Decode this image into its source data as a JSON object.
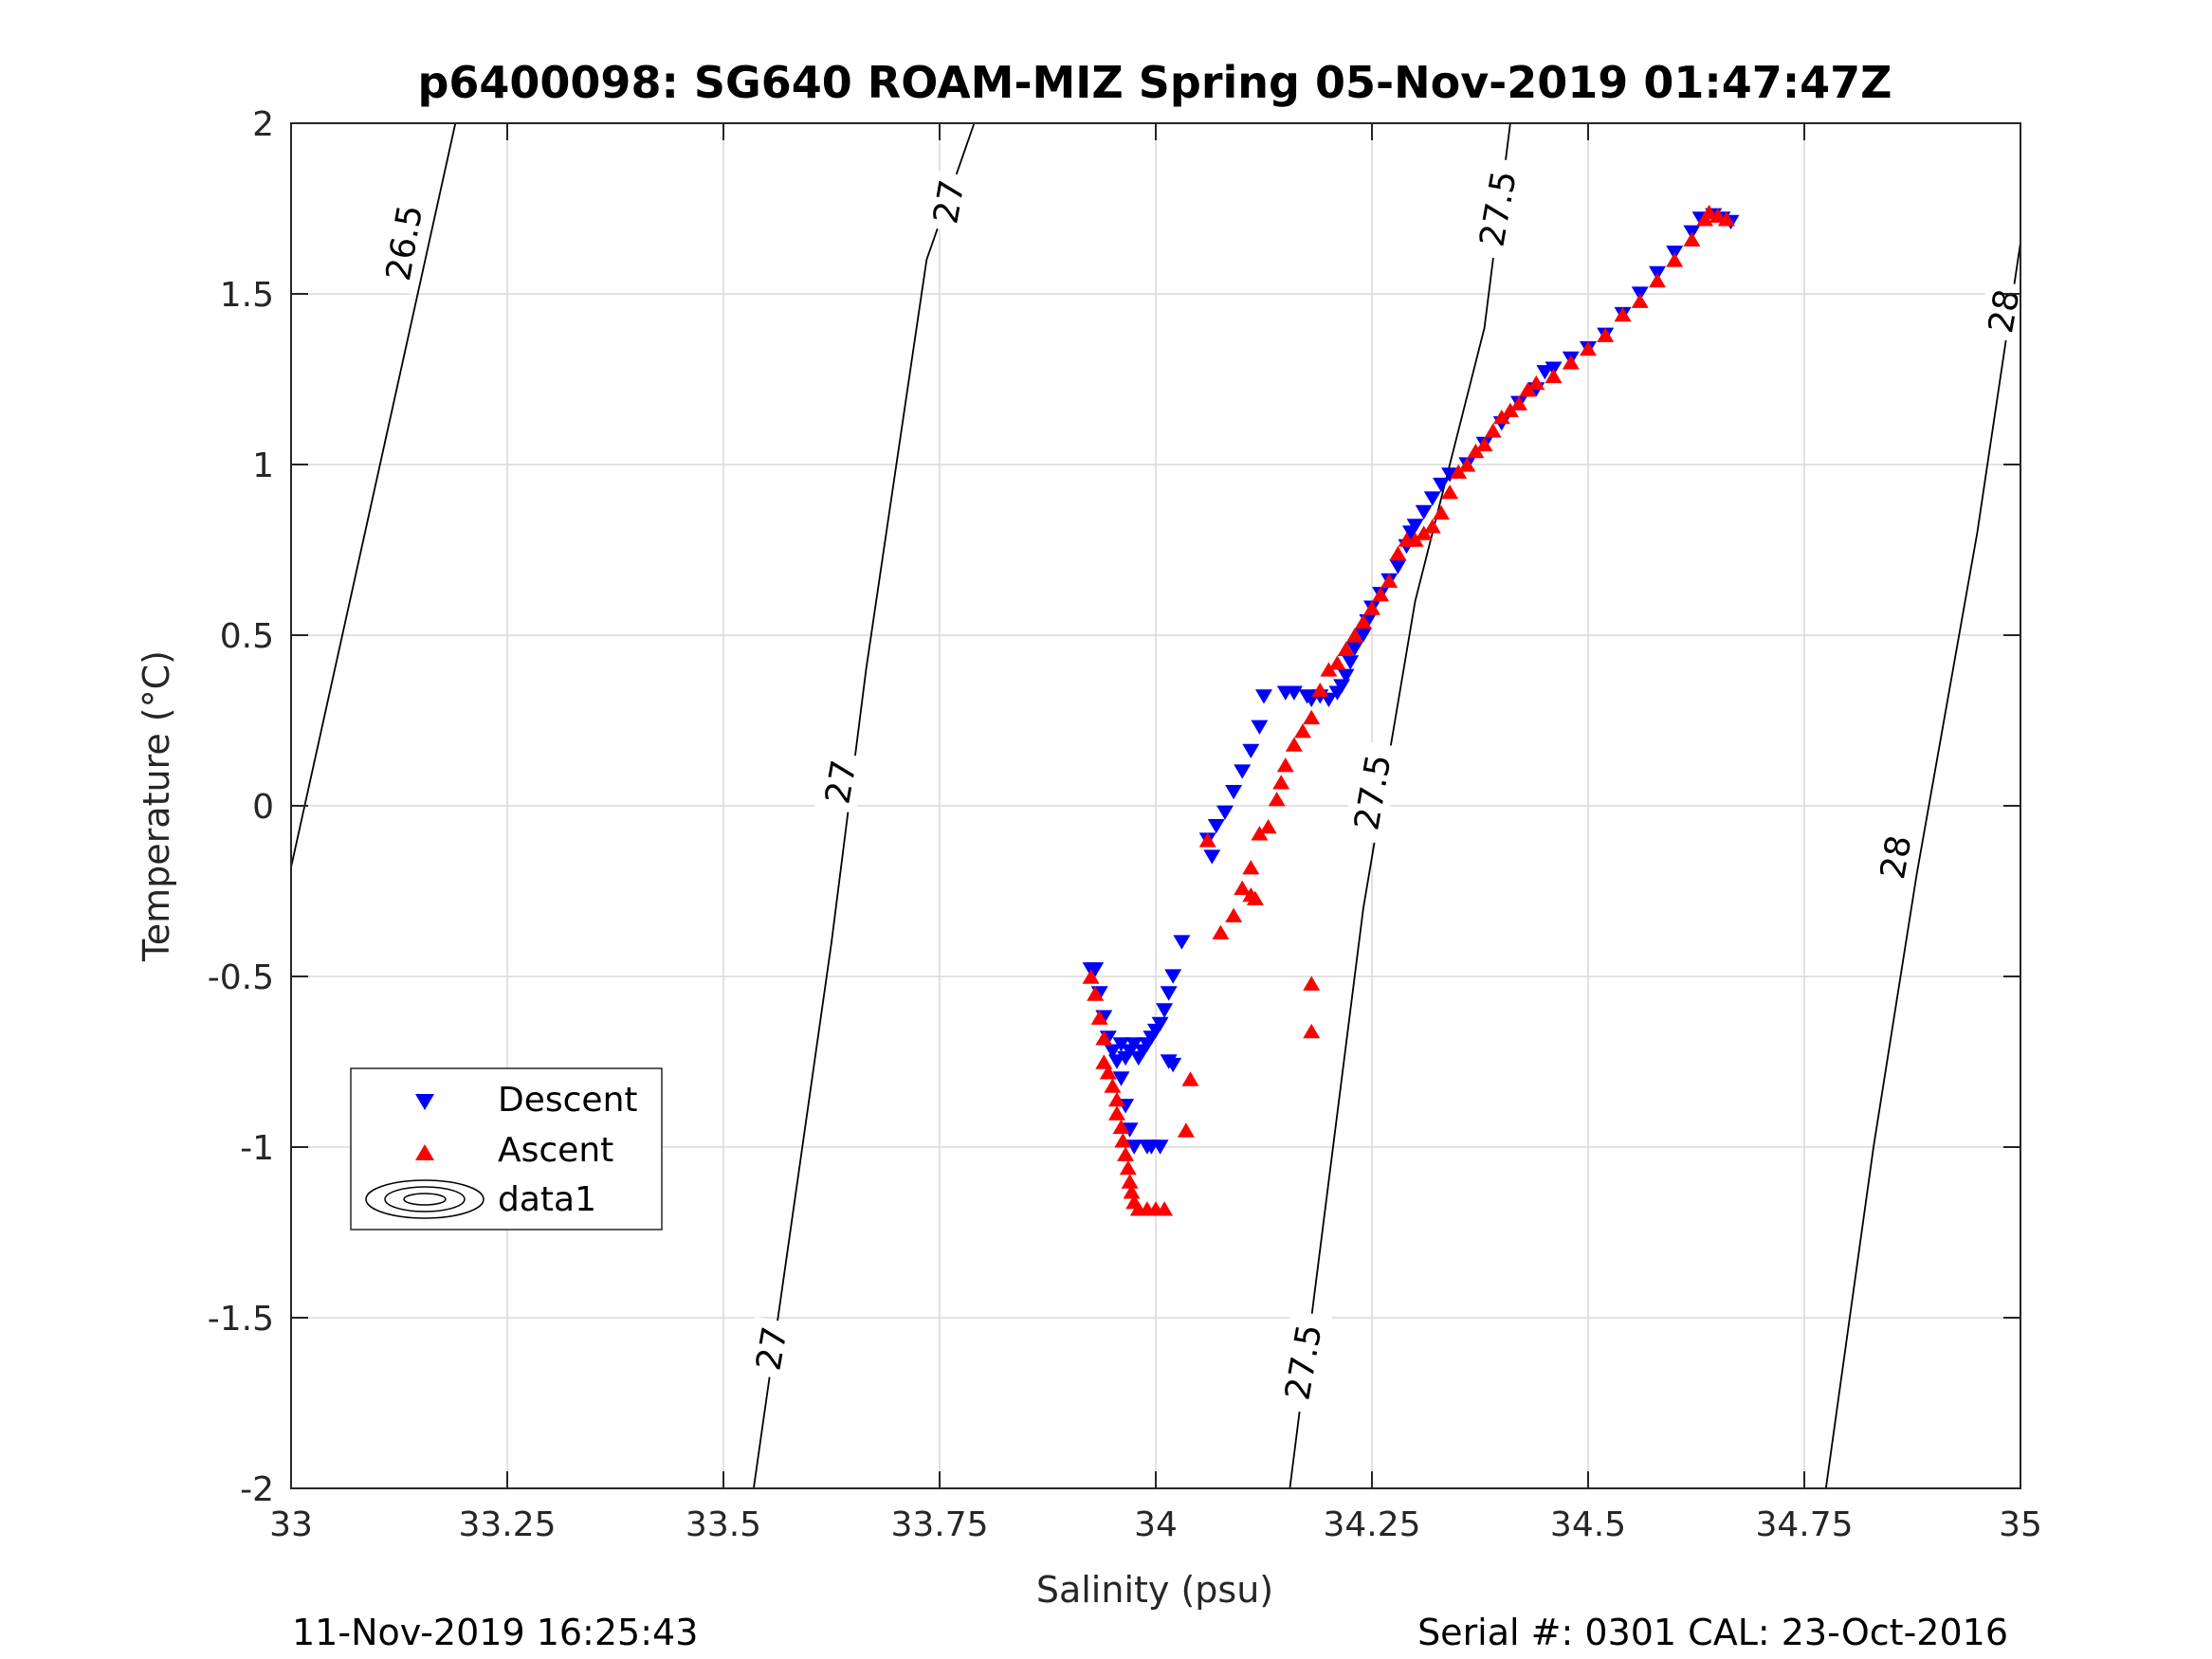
{
  "chart_data": {
    "type": "scatter",
    "title": "p6400098: SG640 ROAM-MIZ Spring 05-Nov-2019 01:47:47Z",
    "xlabel": "Salinity (psu)",
    "ylabel": "Temperature (°C)",
    "xlim": [
      33,
      35
    ],
    "ylim": [
      -2,
      2
    ],
    "x_ticks": [
      33,
      33.25,
      33.5,
      33.75,
      34,
      34.25,
      34.5,
      34.75,
      35
    ],
    "x_tick_labels": [
      "33",
      "33.25",
      "33.5",
      "33.75",
      "34",
      "34.25",
      "34.5",
      "34.75",
      "35"
    ],
    "y_ticks": [
      2,
      1.5,
      1,
      0.5,
      0,
      -0.5,
      -1,
      -1.5,
      -2
    ],
    "y_tick_labels": [
      "2",
      "1.5",
      "1",
      "0.5",
      "0",
      "-0.5",
      "-1",
      "-1.5",
      "-2"
    ],
    "grid": true,
    "legend_position": "lower-left",
    "legend": [
      "Descent",
      "Ascent",
      "data1"
    ],
    "footer_left": "11-Nov-2019 16:25:43",
    "footer_right": "Serial #: 0301  CAL: 23-Oct-2016",
    "series": [
      {
        "name": "Descent",
        "marker": "triangle-down",
        "color": "#0000ff",
        "points": [
          [
            33.925,
            -0.48
          ],
          [
            33.93,
            -0.48
          ],
          [
            33.935,
            -0.55
          ],
          [
            33.94,
            -0.62
          ],
          [
            33.945,
            -0.68
          ],
          [
            33.95,
            -0.72
          ],
          [
            33.955,
            -0.75
          ],
          [
            33.96,
            -0.7
          ],
          [
            33.965,
            -0.74
          ],
          [
            33.97,
            -0.72
          ],
          [
            33.975,
            -0.7
          ],
          [
            33.98,
            -0.74
          ],
          [
            33.985,
            -0.72
          ],
          [
            33.99,
            -0.7
          ],
          [
            33.995,
            -0.68
          ],
          [
            34.0,
            -0.66
          ],
          [
            34.005,
            -0.64
          ],
          [
            34.01,
            -0.6
          ],
          [
            34.015,
            -0.55
          ],
          [
            34.02,
            -0.5
          ],
          [
            34.03,
            -0.4
          ],
          [
            34.015,
            -0.75
          ],
          [
            34.02,
            -0.76
          ],
          [
            33.96,
            -0.8
          ],
          [
            33.965,
            -0.88
          ],
          [
            33.97,
            -0.95
          ],
          [
            33.975,
            -1.0
          ],
          [
            33.99,
            -1.0
          ],
          [
            33.995,
            -1.0
          ],
          [
            34.005,
            -1.0
          ],
          [
            34.06,
            -0.1
          ],
          [
            34.065,
            -0.15
          ],
          [
            34.07,
            -0.06
          ],
          [
            34.08,
            -0.02
          ],
          [
            34.09,
            0.04
          ],
          [
            34.1,
            0.1
          ],
          [
            34.11,
            0.16
          ],
          [
            34.12,
            0.23
          ],
          [
            34.125,
            0.32
          ],
          [
            34.15,
            0.33
          ],
          [
            34.16,
            0.33
          ],
          [
            34.175,
            0.32
          ],
          [
            34.18,
            0.31
          ],
          [
            34.19,
            0.32
          ],
          [
            34.2,
            0.31
          ],
          [
            34.21,
            0.33
          ],
          [
            34.215,
            0.35
          ],
          [
            34.22,
            0.38
          ],
          [
            34.225,
            0.42
          ],
          [
            34.23,
            0.46
          ],
          [
            34.24,
            0.5
          ],
          [
            34.245,
            0.54
          ],
          [
            34.25,
            0.58
          ],
          [
            34.26,
            0.62
          ],
          [
            34.27,
            0.66
          ],
          [
            34.28,
            0.7
          ],
          [
            34.29,
            0.76
          ],
          [
            34.295,
            0.8
          ],
          [
            34.3,
            0.82
          ],
          [
            34.31,
            0.86
          ],
          [
            34.32,
            0.9
          ],
          [
            34.33,
            0.94
          ],
          [
            34.34,
            0.97
          ],
          [
            34.36,
            1.0
          ],
          [
            34.38,
            1.06
          ],
          [
            34.4,
            1.12
          ],
          [
            34.42,
            1.18
          ],
          [
            34.44,
            1.22
          ],
          [
            34.45,
            1.27
          ],
          [
            34.46,
            1.28
          ],
          [
            34.48,
            1.31
          ],
          [
            34.5,
            1.34
          ],
          [
            34.52,
            1.38
          ],
          [
            34.54,
            1.44
          ],
          [
            34.56,
            1.5
          ],
          [
            34.58,
            1.56
          ],
          [
            34.6,
            1.62
          ],
          [
            34.62,
            1.68
          ],
          [
            34.63,
            1.72
          ],
          [
            34.645,
            1.73
          ],
          [
            34.655,
            1.72
          ],
          [
            34.665,
            1.71
          ]
        ]
      },
      {
        "name": "Ascent",
        "marker": "triangle-up",
        "color": "#ff0000",
        "points": [
          [
            33.925,
            -0.5
          ],
          [
            33.93,
            -0.55
          ],
          [
            33.935,
            -0.62
          ],
          [
            33.94,
            -0.68
          ],
          [
            33.94,
            -0.75
          ],
          [
            33.945,
            -0.78
          ],
          [
            33.95,
            -0.82
          ],
          [
            33.955,
            -0.86
          ],
          [
            33.955,
            -0.9
          ],
          [
            33.96,
            -0.94
          ],
          [
            33.962,
            -0.98
          ],
          [
            33.965,
            -1.02
          ],
          [
            33.968,
            -1.06
          ],
          [
            33.97,
            -1.1
          ],
          [
            33.972,
            -1.13
          ],
          [
            33.975,
            -1.16
          ],
          [
            33.98,
            -1.18
          ],
          [
            33.99,
            -1.18
          ],
          [
            34.0,
            -1.18
          ],
          [
            34.01,
            -1.18
          ],
          [
            34.04,
            -0.8
          ],
          [
            34.035,
            -0.95
          ],
          [
            34.06,
            -0.1
          ],
          [
            34.075,
            -0.37
          ],
          [
            34.09,
            -0.32
          ],
          [
            34.1,
            -0.24
          ],
          [
            34.11,
            -0.26
          ],
          [
            34.115,
            -0.27
          ],
          [
            34.11,
            -0.18
          ],
          [
            34.12,
            -0.08
          ],
          [
            34.13,
            -0.06
          ],
          [
            34.14,
            0.02
          ],
          [
            34.145,
            0.07
          ],
          [
            34.15,
            0.12
          ],
          [
            34.16,
            0.18
          ],
          [
            34.17,
            0.22
          ],
          [
            34.18,
            0.26
          ],
          [
            34.19,
            0.34
          ],
          [
            34.2,
            0.4
          ],
          [
            34.21,
            0.42
          ],
          [
            34.22,
            0.46
          ],
          [
            34.23,
            0.5
          ],
          [
            34.24,
            0.54
          ],
          [
            34.25,
            0.58
          ],
          [
            34.26,
            0.62
          ],
          [
            34.27,
            0.66
          ],
          [
            34.28,
            0.74
          ],
          [
            34.29,
            0.78
          ],
          [
            34.3,
            0.78
          ],
          [
            34.31,
            0.8
          ],
          [
            34.32,
            0.82
          ],
          [
            34.33,
            0.86
          ],
          [
            34.34,
            0.92
          ],
          [
            34.35,
            0.98
          ],
          [
            34.36,
            1.0
          ],
          [
            34.37,
            1.04
          ],
          [
            34.38,
            1.06
          ],
          [
            34.39,
            1.1
          ],
          [
            34.4,
            1.14
          ],
          [
            34.41,
            1.16
          ],
          [
            34.42,
            1.18
          ],
          [
            34.43,
            1.22
          ],
          [
            34.44,
            1.24
          ],
          [
            34.46,
            1.26
          ],
          [
            34.48,
            1.3
          ],
          [
            34.5,
            1.34
          ],
          [
            34.52,
            1.38
          ],
          [
            34.54,
            1.44
          ],
          [
            34.56,
            1.48
          ],
          [
            34.58,
            1.54
          ],
          [
            34.6,
            1.6
          ],
          [
            34.62,
            1.66
          ],
          [
            34.635,
            1.72
          ],
          [
            34.64,
            1.74
          ],
          [
            34.65,
            1.73
          ],
          [
            34.66,
            1.72
          ],
          [
            34.18,
            -0.52
          ],
          [
            34.18,
            -0.66
          ]
        ]
      }
    ],
    "density_contours": [
      {
        "level": "26.5",
        "points": [
          [
            33.0,
            -0.18
          ],
          [
            33.19,
            2.0
          ]
        ]
      },
      {
        "level": "27",
        "points": [
          [
            33.535,
            -2.0
          ],
          [
            33.625,
            -0.4
          ],
          [
            33.665,
            0.4
          ],
          [
            33.735,
            1.6
          ],
          [
            33.79,
            2.0
          ]
        ]
      },
      {
        "level": "27.5",
        "points": [
          [
            34.155,
            -2.0
          ],
          [
            34.2,
            -1.1
          ],
          [
            34.24,
            -0.3
          ],
          [
            34.3,
            0.6
          ],
          [
            34.38,
            1.4
          ],
          [
            34.41,
            2.0
          ]
        ]
      },
      {
        "level": "28",
        "points": [
          [
            34.775,
            -2.0
          ],
          [
            34.83,
            -1.0
          ],
          [
            34.88,
            -0.2
          ],
          [
            34.95,
            0.8
          ],
          [
            35.0,
            1.65
          ]
        ]
      }
    ],
    "contour_labels": [
      {
        "text": "26.5",
        "x": 33.13,
        "y": 1.65
      },
      {
        "text": "27",
        "x": 33.76,
        "y": 1.77
      },
      {
        "text": "27",
        "x": 33.635,
        "y": 0.07
      },
      {
        "text": "27",
        "x": 33.555,
        "y": -1.59
      },
      {
        "text": "27.5",
        "x": 34.395,
        "y": 1.75
      },
      {
        "text": "27.5",
        "x": 34.25,
        "y": 0.04
      },
      {
        "text": "27.5",
        "x": 34.17,
        "y": -1.63
      },
      {
        "text": "28",
        "x": 34.98,
        "y": 1.45
      },
      {
        "text": "28",
        "x": 34.855,
        "y": -0.15
      }
    ]
  }
}
